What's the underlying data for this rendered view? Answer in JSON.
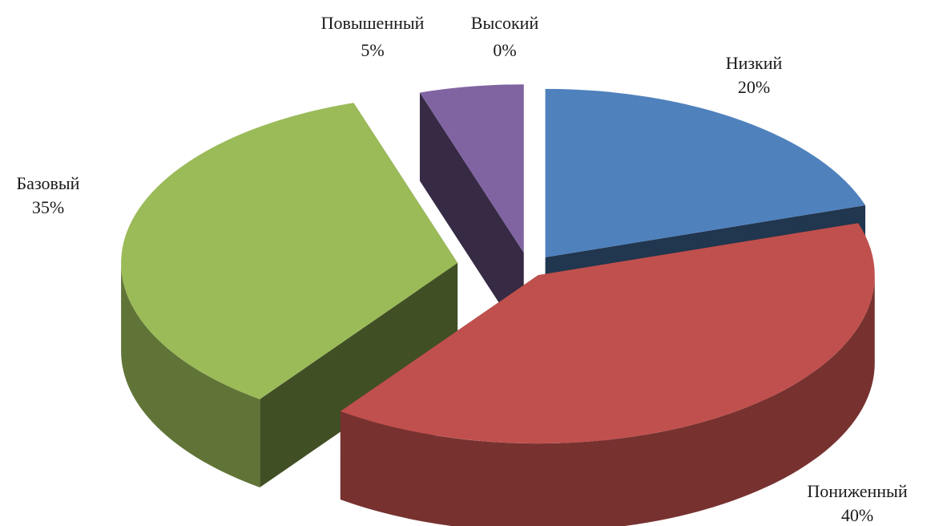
{
  "chart_data": {
    "type": "pie",
    "style": "3d-exploded",
    "title": "",
    "slices": [
      {
        "name": "Низкий",
        "value": 20,
        "label": "20%",
        "color": "#4f81bd"
      },
      {
        "name": "Пониженный",
        "value": 40,
        "label": "40%",
        "color": "#c0504d"
      },
      {
        "name": "Базовый",
        "value": 35,
        "label": "35%",
        "color": "#9bbb59"
      },
      {
        "name": "Повышенный",
        "value": 5,
        "label": "5%",
        "color": "#8064a2"
      },
      {
        "name": "Высокий",
        "value": 0,
        "label": "0%",
        "color": "#4bacc6"
      }
    ]
  }
}
